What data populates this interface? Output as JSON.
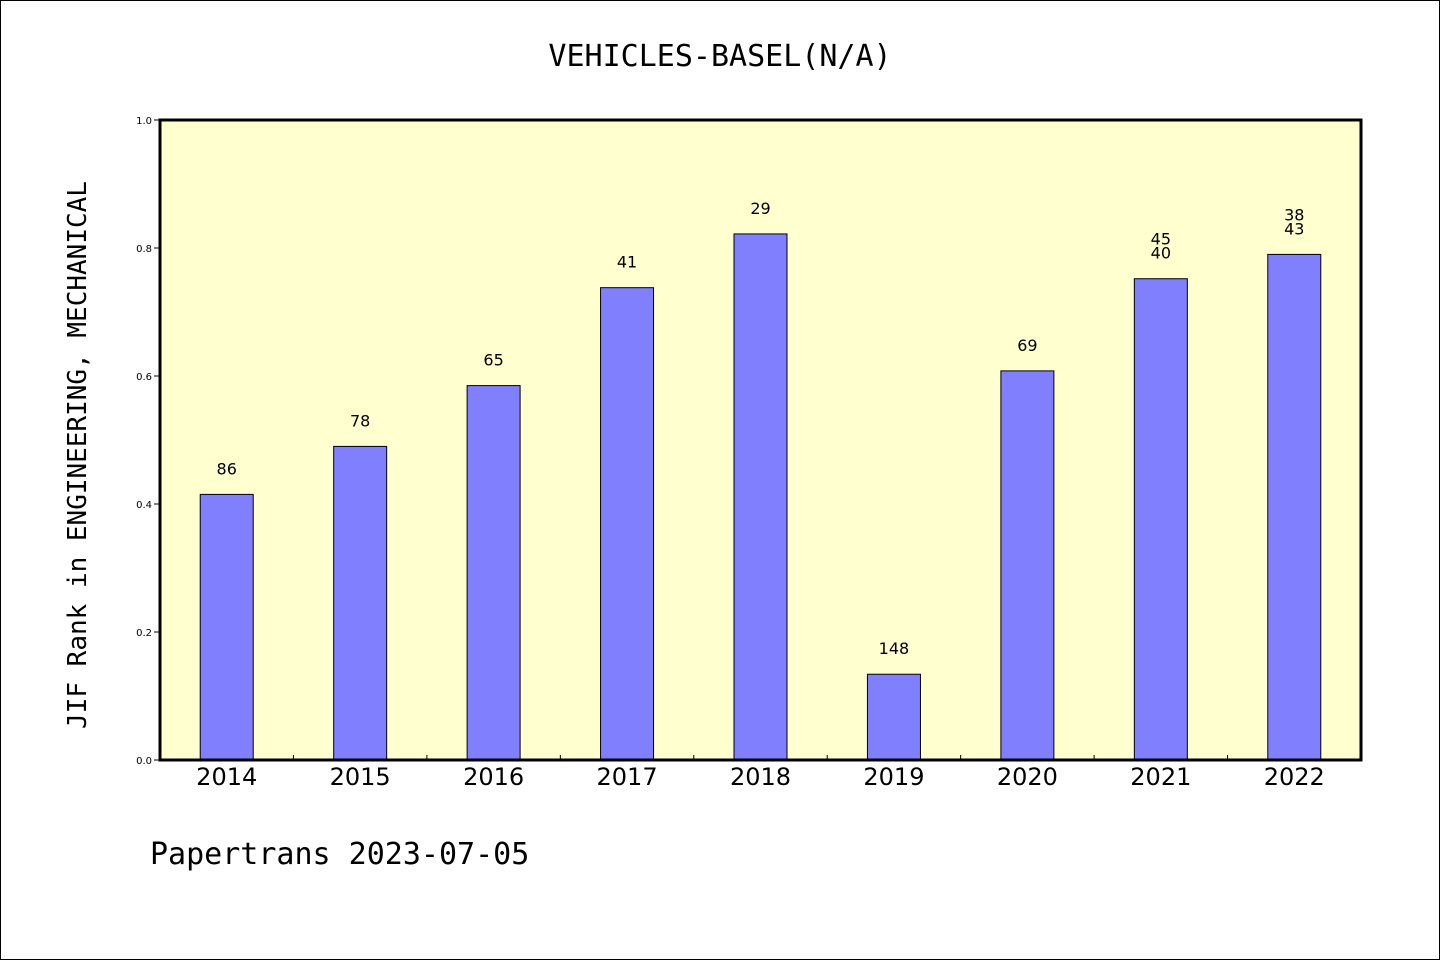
{
  "chart_data": {
    "type": "bar",
    "title": "VEHICLES-BASEL(N/A)",
    "xlabel": "",
    "ylabel": "JIF Rank in ENGINEERING, MECHANICAL",
    "ylim": [
      0,
      1.0
    ],
    "yticks": [
      "0.0",
      "0.2",
      "0.4",
      "0.6",
      "0.8",
      "1.0"
    ],
    "categories": [
      "2014",
      "2015",
      "2016",
      "2017",
      "2018",
      "2019",
      "2020",
      "2021",
      "2022"
    ],
    "values": [
      0.415,
      0.49,
      0.585,
      0.738,
      0.822,
      0.134,
      0.608,
      0.752,
      0.79
    ],
    "data_labels": [
      [
        "86"
      ],
      [
        "78"
      ],
      [
        "65"
      ],
      [
        "41"
      ],
      [
        "29"
      ],
      [
        "148"
      ],
      [
        "69"
      ],
      [
        "45",
        "40"
      ],
      [
        "38",
        "43"
      ]
    ],
    "grid": false,
    "legend": "none",
    "colors": {
      "bar_fill": "#8080ff",
      "plot_background": "#ffffd0",
      "axis": "#000000"
    }
  },
  "footer": {
    "text": "Papertrans 2023-07-05"
  }
}
